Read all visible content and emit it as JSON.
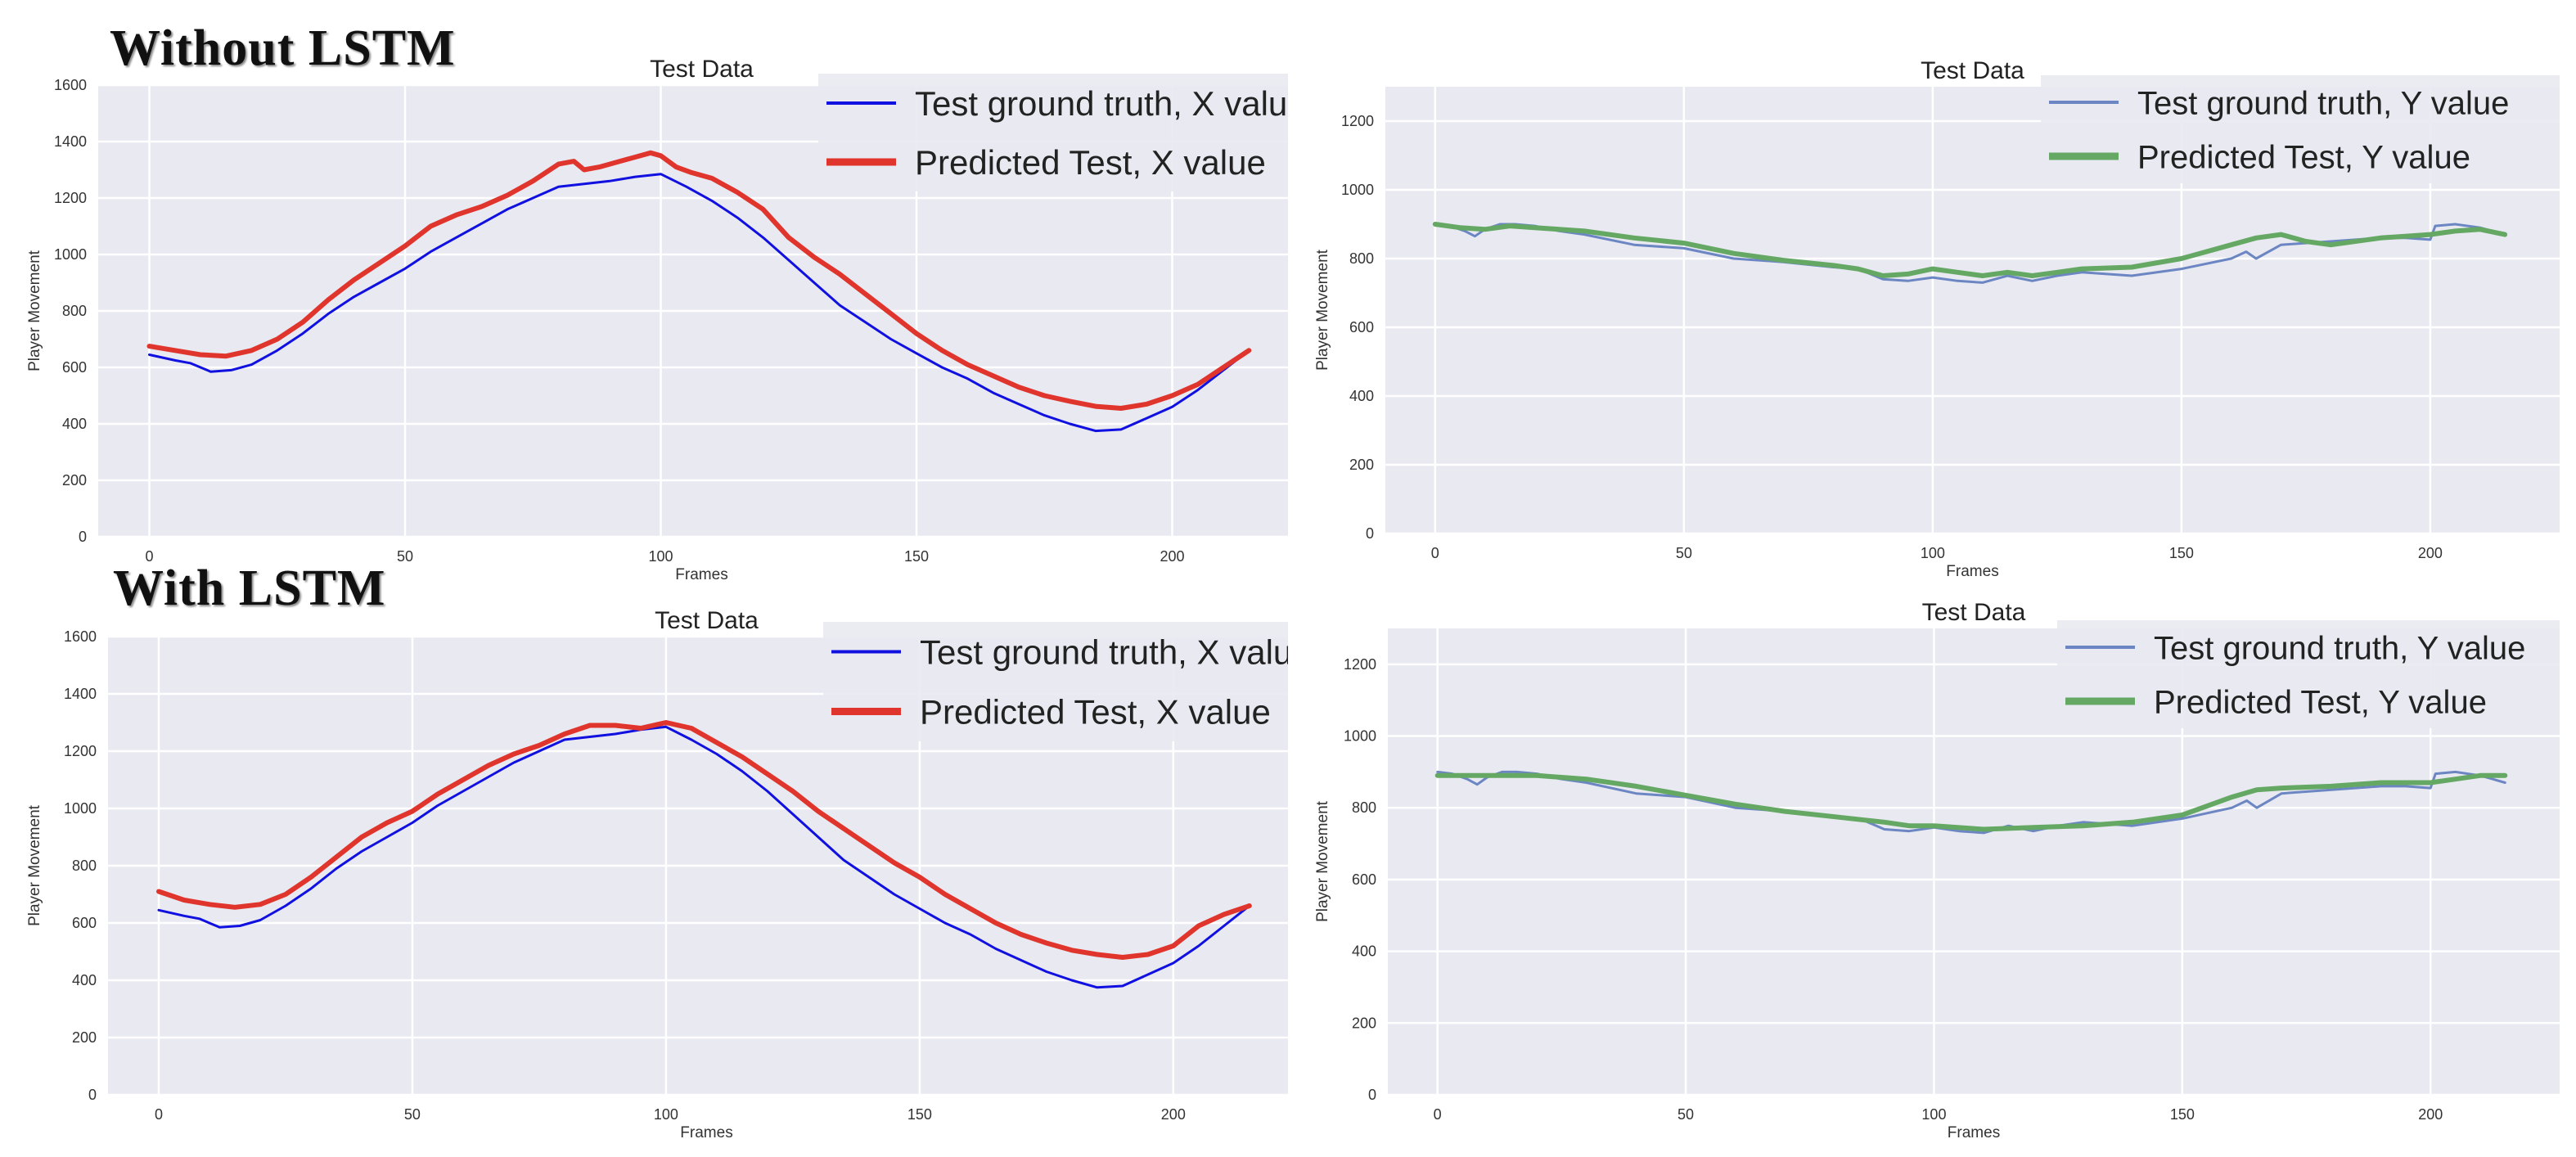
{
  "sections": {
    "without_label": "Without LSTM",
    "with_label": "With LSTM"
  },
  "colors": {
    "plot_bg": "#e9e9f1",
    "grid": "#ffffff",
    "blue_x": "#1010e0",
    "red_x": "#e0352c",
    "blue_y": "#6b86c2",
    "green_y": "#64a864"
  },
  "chart_data": [
    {
      "id": "without-x",
      "type": "line",
      "title": "Test Data",
      "xlabel": "Frames",
      "ylabel": "Player Movement",
      "xlim": [
        -10,
        226
      ],
      "ylim": [
        0,
        1600
      ],
      "xticks": [
        0,
        50,
        100,
        150,
        200
      ],
      "yticks": [
        0,
        200,
        400,
        600,
        800,
        1000,
        1200,
        1400,
        1600
      ],
      "grid": true,
      "legend_position": "top-right",
      "series": [
        {
          "name": "Test ground truth, X value",
          "color": "#1010e0",
          "width": "thin",
          "x": [
            0,
            5,
            8,
            12,
            16,
            20,
            25,
            30,
            35,
            40,
            45,
            50,
            55,
            60,
            65,
            70,
            75,
            80,
            85,
            90,
            95,
            100,
            105,
            110,
            115,
            120,
            125,
            130,
            135,
            140,
            145,
            150,
            155,
            160,
            165,
            170,
            175,
            180,
            185,
            190,
            195,
            200,
            205,
            210,
            215
          ],
          "y": [
            645,
            625,
            615,
            585,
            590,
            610,
            660,
            720,
            790,
            850,
            900,
            950,
            1010,
            1060,
            1110,
            1160,
            1200,
            1240,
            1250,
            1260,
            1275,
            1285,
            1240,
            1190,
            1130,
            1060,
            980,
            900,
            820,
            760,
            700,
            650,
            600,
            560,
            510,
            470,
            430,
            400,
            375,
            380,
            420,
            460,
            520,
            590,
            660
          ]
        },
        {
          "name": "Predicted Test, X value",
          "color": "#e0352c",
          "width": "thick",
          "x": [
            0,
            5,
            10,
            15,
            20,
            25,
            30,
            35,
            40,
            45,
            50,
            55,
            60,
            65,
            70,
            75,
            80,
            83,
            85,
            88,
            92,
            95,
            98,
            100,
            103,
            106,
            110,
            115,
            120,
            125,
            130,
            135,
            140,
            145,
            150,
            155,
            160,
            165,
            170,
            175,
            180,
            185,
            190,
            195,
            200,
            205,
            210,
            215
          ],
          "y": [
            675,
            660,
            645,
            640,
            660,
            700,
            760,
            840,
            910,
            970,
            1030,
            1100,
            1140,
            1170,
            1210,
            1260,
            1320,
            1330,
            1300,
            1310,
            1330,
            1345,
            1360,
            1350,
            1310,
            1290,
            1270,
            1220,
            1160,
            1060,
            990,
            930,
            860,
            790,
            720,
            660,
            610,
            570,
            530,
            500,
            480,
            462,
            455,
            470,
            500,
            540,
            600,
            660
          ]
        }
      ]
    },
    {
      "id": "without-y",
      "type": "line",
      "title": "Test Data",
      "xlabel": "Frames",
      "ylabel": "Player Movement",
      "xlim": [
        -10,
        226
      ],
      "ylim": [
        0,
        1300
      ],
      "xticks": [
        0,
        50,
        100,
        150,
        200
      ],
      "yticks": [
        0,
        200,
        400,
        600,
        800,
        1000,
        1200
      ],
      "grid": true,
      "legend_position": "top-right",
      "series": [
        {
          "name": "Test ground truth, Y value",
          "color": "#6b86c2",
          "width": "thin",
          "x": [
            0,
            3,
            6,
            8,
            10,
            13,
            16,
            20,
            25,
            30,
            40,
            50,
            60,
            70,
            80,
            85,
            90,
            95,
            100,
            105,
            110,
            115,
            120,
            125,
            130,
            140,
            150,
            160,
            163,
            165,
            170,
            180,
            190,
            195,
            200,
            201,
            205,
            210,
            215
          ],
          "y": [
            900,
            895,
            880,
            865,
            885,
            900,
            900,
            895,
            880,
            870,
            840,
            830,
            800,
            790,
            775,
            770,
            740,
            735,
            745,
            735,
            730,
            750,
            735,
            750,
            760,
            750,
            770,
            800,
            820,
            800,
            840,
            850,
            860,
            860,
            855,
            895,
            900,
            890,
            870
          ]
        },
        {
          "name": "Predicted Test, Y value",
          "color": "#64a864",
          "width": "thick",
          "x": [
            0,
            5,
            10,
            15,
            20,
            30,
            40,
            50,
            60,
            70,
            80,
            85,
            90,
            95,
            100,
            105,
            110,
            115,
            120,
            125,
            130,
            140,
            150,
            160,
            165,
            170,
            175,
            180,
            190,
            200,
            205,
            210,
            215
          ],
          "y": [
            900,
            890,
            885,
            895,
            890,
            880,
            860,
            845,
            815,
            795,
            780,
            770,
            750,
            755,
            770,
            760,
            750,
            760,
            750,
            760,
            770,
            775,
            800,
            840,
            860,
            870,
            850,
            840,
            860,
            870,
            880,
            885,
            870
          ]
        }
      ]
    },
    {
      "id": "with-x",
      "type": "line",
      "title": "Test Data",
      "xlabel": "Frames",
      "ylabel": "Player Movement",
      "xlim": [
        -10,
        226
      ],
      "ylim": [
        0,
        1600
      ],
      "xticks": [
        0,
        50,
        100,
        150,
        200
      ],
      "yticks": [
        0,
        200,
        400,
        600,
        800,
        1000,
        1200,
        1400,
        1600
      ],
      "grid": true,
      "legend_position": "top-right",
      "series": [
        {
          "name": "Test ground truth, X value",
          "color": "#1010e0",
          "width": "thin",
          "x": [
            0,
            5,
            8,
            12,
            16,
            20,
            25,
            30,
            35,
            40,
            45,
            50,
            55,
            60,
            65,
            70,
            75,
            80,
            85,
            90,
            95,
            100,
            105,
            110,
            115,
            120,
            125,
            130,
            135,
            140,
            145,
            150,
            155,
            160,
            165,
            170,
            175,
            180,
            185,
            190,
            195,
            200,
            205,
            210,
            215
          ],
          "y": [
            645,
            625,
            615,
            585,
            590,
            610,
            660,
            720,
            790,
            850,
            900,
            950,
            1010,
            1060,
            1110,
            1160,
            1200,
            1240,
            1250,
            1260,
            1275,
            1285,
            1240,
            1190,
            1130,
            1060,
            980,
            900,
            820,
            760,
            700,
            650,
            600,
            560,
            510,
            470,
            430,
            400,
            375,
            380,
            420,
            460,
            520,
            590,
            660
          ]
        },
        {
          "name": "Predicted Test, X value",
          "color": "#e0352c",
          "width": "thick",
          "x": [
            0,
            5,
            10,
            15,
            20,
            25,
            30,
            35,
            40,
            45,
            50,
            55,
            60,
            65,
            70,
            75,
            80,
            85,
            90,
            95,
            100,
            105,
            110,
            115,
            120,
            125,
            130,
            135,
            140,
            145,
            150,
            155,
            160,
            165,
            170,
            175,
            180,
            185,
            190,
            195,
            200,
            205,
            210,
            215
          ],
          "y": [
            710,
            680,
            665,
            655,
            665,
            700,
            760,
            830,
            900,
            950,
            990,
            1050,
            1100,
            1150,
            1190,
            1220,
            1260,
            1290,
            1290,
            1280,
            1300,
            1280,
            1230,
            1180,
            1120,
            1060,
            990,
            930,
            870,
            810,
            760,
            700,
            650,
            600,
            560,
            530,
            505,
            490,
            480,
            490,
            520,
            590,
            630,
            660
          ]
        }
      ]
    },
    {
      "id": "with-y",
      "type": "line",
      "title": "Test Data",
      "xlabel": "Frames",
      "ylabel": "Player Movement",
      "xlim": [
        -10,
        226
      ],
      "ylim": [
        0,
        1300
      ],
      "xticks": [
        0,
        50,
        100,
        150,
        200
      ],
      "yticks": [
        0,
        200,
        400,
        600,
        800,
        1000,
        1200
      ],
      "grid": true,
      "legend_position": "top-right",
      "series": [
        {
          "name": "Test ground truth, Y value",
          "color": "#6b86c2",
          "width": "thin",
          "x": [
            0,
            3,
            6,
            8,
            10,
            13,
            16,
            20,
            25,
            30,
            40,
            50,
            60,
            70,
            80,
            85,
            90,
            95,
            100,
            105,
            110,
            115,
            120,
            125,
            130,
            140,
            150,
            160,
            163,
            165,
            170,
            180,
            190,
            195,
            200,
            201,
            205,
            210,
            215
          ],
          "y": [
            900,
            895,
            880,
            865,
            885,
            900,
            900,
            895,
            880,
            870,
            840,
            830,
            800,
            790,
            775,
            770,
            740,
            735,
            745,
            735,
            730,
            750,
            735,
            750,
            760,
            750,
            770,
            800,
            820,
            800,
            840,
            850,
            860,
            860,
            855,
            895,
            900,
            890,
            870
          ]
        },
        {
          "name": "Predicted Test, Y value",
          "color": "#64a864",
          "width": "thick",
          "x": [
            0,
            10,
            20,
            30,
            40,
            50,
            60,
            70,
            80,
            90,
            95,
            100,
            110,
            120,
            130,
            140,
            150,
            160,
            165,
            170,
            180,
            190,
            200,
            205,
            210,
            215
          ],
          "y": [
            890,
            890,
            890,
            880,
            860,
            835,
            810,
            790,
            775,
            760,
            750,
            750,
            740,
            745,
            750,
            760,
            780,
            830,
            850,
            855,
            860,
            870,
            870,
            880,
            890,
            890
          ]
        }
      ]
    }
  ]
}
